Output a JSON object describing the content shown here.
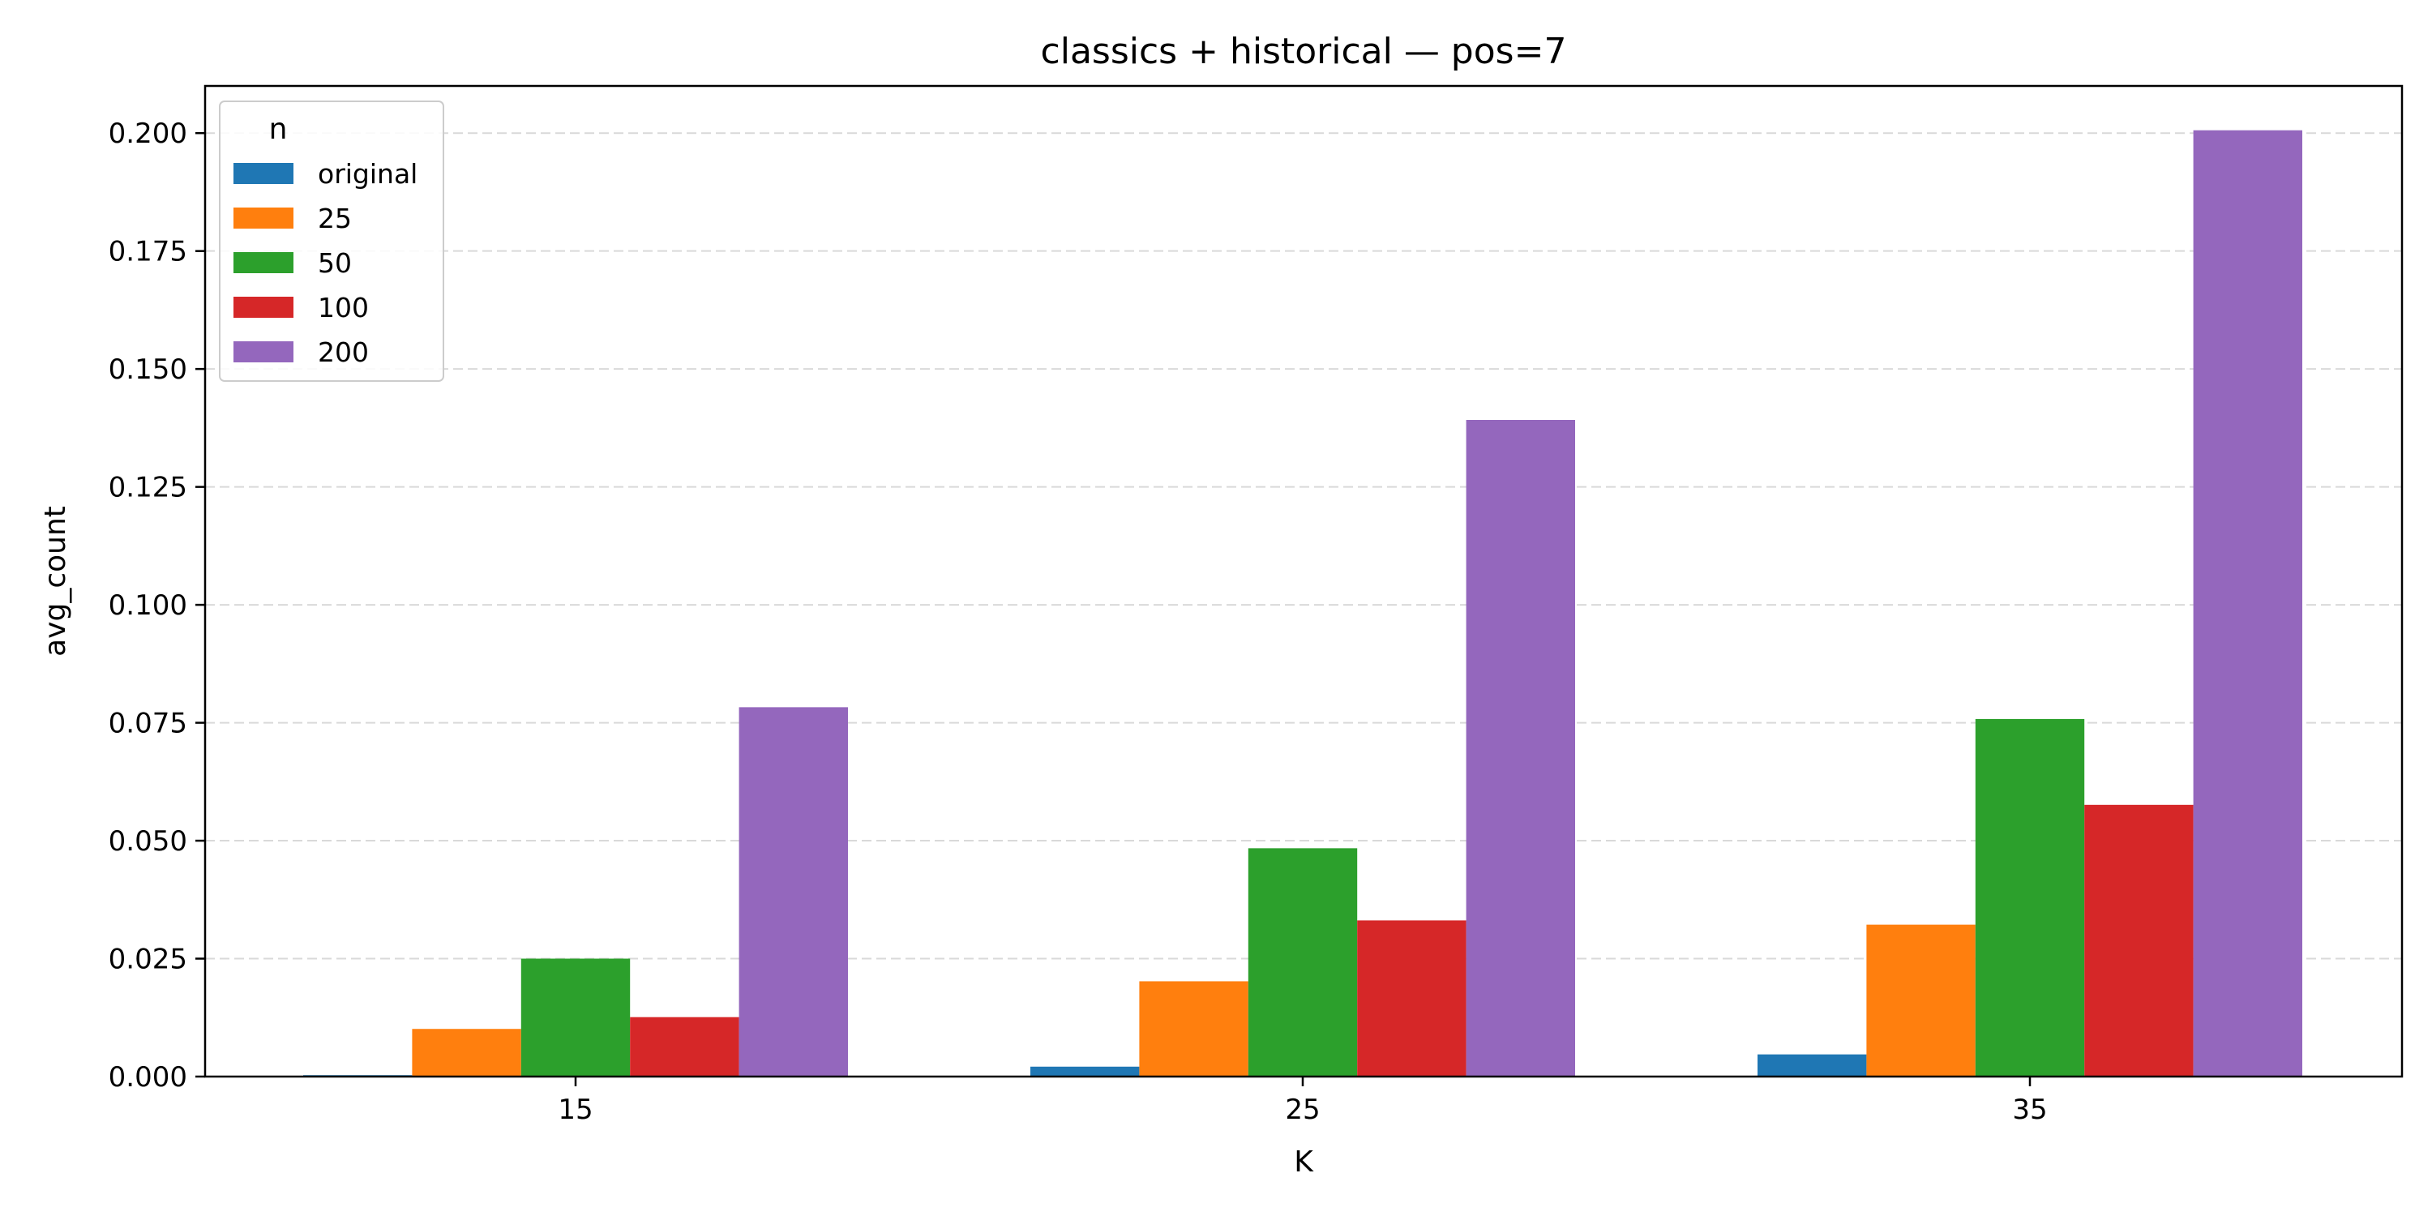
{
  "chart_data": {
    "type": "bar",
    "title": "classics + historical — pos=7",
    "xlabel": "K",
    "ylabel": "avg_count",
    "categories": [
      "15",
      "25",
      "35"
    ],
    "series": [
      {
        "name": "original",
        "color": "#1f77b4",
        "values": [
          0.0003,
          0.0021,
          0.0047
        ]
      },
      {
        "name": "25",
        "color": "#ff7f0e",
        "values": [
          0.0101,
          0.0202,
          0.0322
        ]
      },
      {
        "name": "50",
        "color": "#2ca02c",
        "values": [
          0.025,
          0.0484,
          0.0758
        ]
      },
      {
        "name": "100",
        "color": "#d62728",
        "values": [
          0.0126,
          0.0331,
          0.0576
        ]
      },
      {
        "name": "200",
        "color": "#9467bd",
        "values": [
          0.0783,
          0.1392,
          0.2006
        ]
      }
    ],
    "ylim": [
      0,
      0.21
    ],
    "yticks": [
      "0.000",
      "0.025",
      "0.050",
      "0.075",
      "0.100",
      "0.125",
      "0.150",
      "0.175",
      "0.200"
    ],
    "grid": "y-dashed",
    "legend": {
      "title": "n",
      "placement": "top-left"
    }
  }
}
